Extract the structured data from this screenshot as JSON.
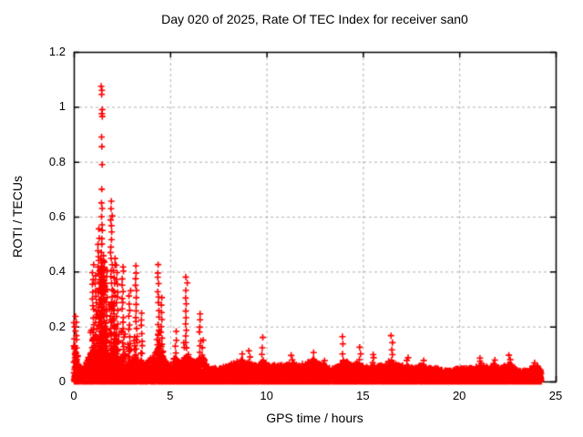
{
  "chart_data": {
    "type": "scatter",
    "title": "Day 020 of 2025, Rate Of TEC Index for receiver san0",
    "xlabel": "GPS time / hours",
    "ylabel": "ROTI / TECUs",
    "xlim": [
      0,
      25
    ],
    "ylim": [
      0,
      1.2
    ],
    "xticks": [
      0,
      5,
      10,
      15,
      20,
      25
    ],
    "xtick_labels": [
      "0",
      "5",
      "10",
      "15",
      "20",
      "25"
    ],
    "yticks": [
      0,
      0.2,
      0.4,
      0.6,
      0.8,
      1.0,
      1.2
    ],
    "ytick_labels": [
      "0",
      "0.2",
      "0.4",
      "0.6",
      "0.8",
      "1",
      "1.2"
    ],
    "grid": true,
    "legend": false,
    "marker": "plus",
    "marker_color": "#ff0000",
    "grid_color": "#b0b0b0",
    "border_color": "#000000",
    "data_x_end": 24.25,
    "noise_floor_typical": 0.04,
    "main_spike": {
      "x": 1.45,
      "values": [
        1.075,
        1.06,
        1.045,
        0.99,
        0.975,
        0.965,
        0.89,
        0.855,
        0.79,
        0.7,
        0.65,
        0.63,
        0.6,
        0.57,
        0.55,
        0.52,
        0.5,
        0.47,
        0.44,
        0.42,
        0.4,
        0.38,
        0.36,
        0.34,
        0.32,
        0.3,
        0.28,
        0.26,
        0.24,
        0.22,
        0.2,
        0.18,
        0.16,
        0.14,
        0.12,
        0.1
      ]
    },
    "spikes": [
      {
        "x": 0.05,
        "top": 0.235
      },
      {
        "x": 0.1,
        "top": 0.22
      },
      {
        "x": 1.0,
        "top": 0.42
      },
      {
        "x": 1.15,
        "top": 0.38
      },
      {
        "x": 1.3,
        "top": 0.55
      },
      {
        "x": 1.55,
        "top": 0.46
      },
      {
        "x": 1.7,
        "top": 0.4
      },
      {
        "x": 1.95,
        "top": 0.655
      },
      {
        "x": 2.1,
        "top": 0.45
      },
      {
        "x": 2.25,
        "top": 0.42
      },
      {
        "x": 2.55,
        "top": 0.42
      },
      {
        "x": 2.9,
        "top": 0.33
      },
      {
        "x": 3.25,
        "top": 0.42
      },
      {
        "x": 3.5,
        "top": 0.25
      },
      {
        "x": 4.4,
        "top": 0.42
      },
      {
        "x": 4.55,
        "top": 0.3
      },
      {
        "x": 5.3,
        "top": 0.18
      },
      {
        "x": 5.85,
        "top": 0.38
      },
      {
        "x": 6.55,
        "top": 0.25
      },
      {
        "x": 6.7,
        "top": 0.15
      },
      {
        "x": 8.7,
        "top": 0.1
      },
      {
        "x": 9.1,
        "top": 0.11
      },
      {
        "x": 9.8,
        "top": 0.155
      },
      {
        "x": 11.3,
        "top": 0.09
      },
      {
        "x": 12.4,
        "top": 0.1
      },
      {
        "x": 13.0,
        "top": 0.08
      },
      {
        "x": 13.95,
        "top": 0.16
      },
      {
        "x": 14.85,
        "top": 0.12
      },
      {
        "x": 15.55,
        "top": 0.1
      },
      {
        "x": 16.5,
        "top": 0.17
      },
      {
        "x": 17.3,
        "top": 0.09
      },
      {
        "x": 18.2,
        "top": 0.08
      },
      {
        "x": 21.1,
        "top": 0.085
      },
      {
        "x": 21.8,
        "top": 0.08
      },
      {
        "x": 22.6,
        "top": 0.09
      },
      {
        "x": 23.9,
        "top": 0.07
      }
    ],
    "baseline_envelope": {
      "x": [
        0.0,
        0.05,
        0.2,
        0.45,
        0.7,
        0.9,
        1.05,
        1.25,
        1.45,
        1.65,
        1.85,
        2.0,
        2.15,
        2.35,
        2.55,
        2.75,
        2.95,
        3.15,
        3.35,
        3.6,
        3.85,
        4.1,
        4.35,
        4.55,
        4.8,
        5.0,
        5.25,
        5.5,
        5.75,
        5.95,
        6.2,
        6.45,
        6.65,
        6.9,
        7.2,
        7.6,
        8.0,
        8.4,
        8.7,
        9.0,
        9.3,
        9.6,
        9.85,
        10.1,
        10.5,
        10.9,
        11.3,
        11.7,
        12.1,
        12.5,
        12.9,
        13.3,
        13.7,
        14.0,
        14.4,
        14.7,
        14.95,
        15.3,
        15.7,
        16.1,
        16.45,
        16.8,
        17.2,
        17.6,
        18.0,
        18.4,
        18.8,
        19.2,
        19.6,
        20.0,
        20.4,
        20.8,
        21.15,
        21.5,
        21.85,
        22.2,
        22.6,
        23.0,
        23.4,
        23.8,
        24.1,
        24.25
      ],
      "ymax": [
        0.16,
        0.14,
        0.07,
        0.05,
        0.08,
        0.12,
        0.13,
        0.1,
        0.16,
        0.12,
        0.1,
        0.13,
        0.1,
        0.08,
        0.1,
        0.08,
        0.1,
        0.09,
        0.08,
        0.07,
        0.08,
        0.09,
        0.12,
        0.1,
        0.07,
        0.06,
        0.09,
        0.07,
        0.09,
        0.1,
        0.07,
        0.08,
        0.1,
        0.06,
        0.05,
        0.05,
        0.06,
        0.07,
        0.08,
        0.07,
        0.06,
        0.06,
        0.08,
        0.06,
        0.06,
        0.06,
        0.07,
        0.06,
        0.07,
        0.08,
        0.06,
        0.05,
        0.06,
        0.08,
        0.06,
        0.07,
        0.06,
        0.05,
        0.06,
        0.06,
        0.08,
        0.06,
        0.06,
        0.05,
        0.06,
        0.05,
        0.05,
        0.04,
        0.04,
        0.05,
        0.05,
        0.05,
        0.07,
        0.05,
        0.06,
        0.05,
        0.07,
        0.04,
        0.04,
        0.05,
        0.06,
        0.04
      ]
    }
  }
}
